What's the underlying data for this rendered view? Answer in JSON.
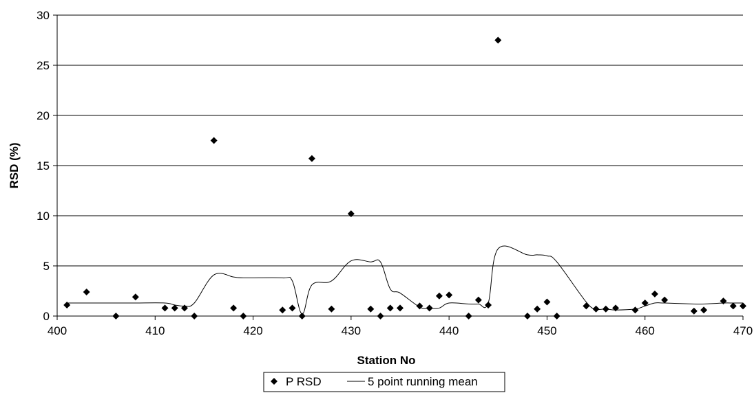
{
  "chart_data": {
    "type": "scatter",
    "xlabel": "Station No",
    "ylabel": "RSD (%)",
    "xlim": [
      400,
      470
    ],
    "ylim": [
      0,
      30
    ],
    "xticks": [
      400,
      410,
      420,
      430,
      440,
      450,
      460,
      470
    ],
    "yticks": [
      0,
      5,
      10,
      15,
      20,
      25,
      30
    ],
    "grid": "horizontal",
    "legend_position": "bottom",
    "series": [
      {
        "name": "P RSD",
        "kind": "scatter",
        "marker": "diamond",
        "color": "#000000",
        "x": [
          401,
          403,
          406,
          408,
          411,
          412,
          413,
          414,
          416,
          418,
          419,
          423,
          424,
          425,
          426,
          428,
          430,
          432,
          433,
          434,
          435,
          437,
          438,
          439,
          440,
          442,
          443,
          444,
          445,
          448,
          449,
          450,
          451,
          454,
          455,
          456,
          457,
          459,
          460,
          461,
          462,
          465,
          466,
          468,
          469,
          470
        ],
        "y": [
          1.1,
          2.4,
          0.0,
          1.9,
          0.8,
          0.8,
          0.8,
          0.0,
          17.5,
          0.8,
          0.0,
          0.6,
          0.8,
          0.0,
          15.7,
          0.7,
          10.2,
          0.7,
          0.0,
          0.8,
          0.8,
          1.0,
          0.8,
          2.0,
          2.1,
          0.0,
          1.6,
          1.1,
          27.5,
          0.0,
          0.7,
          1.4,
          0.0,
          1.0,
          0.7,
          0.7,
          0.8,
          0.6,
          1.3,
          2.2,
          1.6,
          0.5,
          0.6,
          1.5,
          1.0,
          1.0
        ]
      },
      {
        "name": "5 point running mean",
        "kind": "line",
        "color": "#000000",
        "x": [
          401,
          403,
          406,
          408,
          411,
          412,
          413,
          414,
          416,
          418,
          419,
          423,
          424,
          425,
          426,
          428,
          430,
          432,
          433,
          434,
          435,
          437,
          438,
          439,
          440,
          442,
          443,
          444,
          445,
          448,
          449,
          450,
          451,
          454,
          455,
          456,
          457,
          459,
          460,
          461,
          462,
          465,
          466,
          468,
          469,
          470
        ],
        "y": [
          1.3,
          1.3,
          1.3,
          1.3,
          1.3,
          1.1,
          1.0,
          1.3,
          4.1,
          3.9,
          3.8,
          3.8,
          3.5,
          0.2,
          3.1,
          3.5,
          5.5,
          5.4,
          5.4,
          2.7,
          2.3,
          0.9,
          0.8,
          0.8,
          1.3,
          1.2,
          1.2,
          1.3,
          6.7,
          6.1,
          6.1,
          6.0,
          5.4,
          1.4,
          0.7,
          0.7,
          0.6,
          0.7,
          1.0,
          1.3,
          1.3,
          1.2,
          1.2,
          1.3,
          1.3,
          1.3
        ]
      }
    ]
  }
}
